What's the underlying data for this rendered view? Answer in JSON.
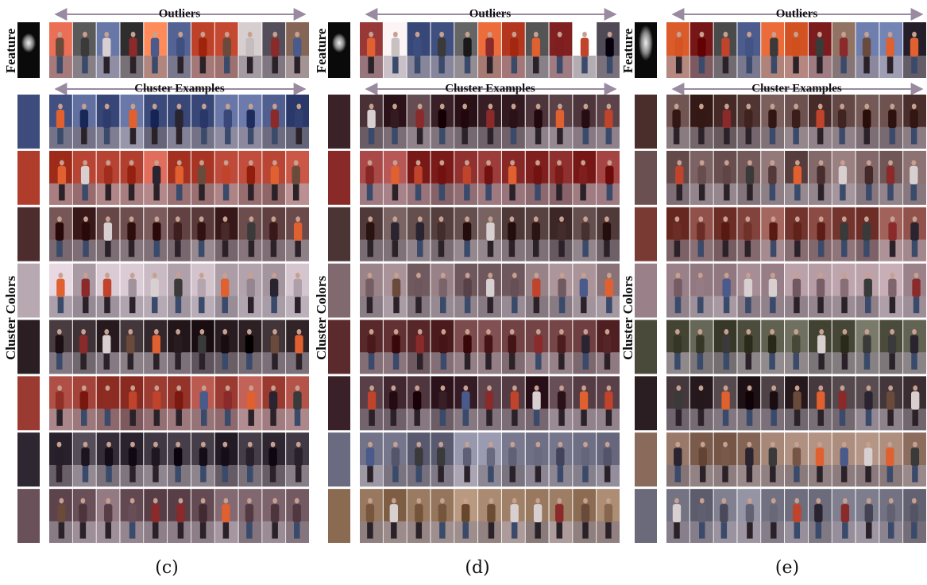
{
  "panels": [
    {
      "caption": "(c)",
      "feature_label": "Feature",
      "outliers_label": "Outliers",
      "cluster_examples_label": "Cluster Examples",
      "cluster_colors_label": "Cluster Colors",
      "cluster_colors": [
        "#3d4c7c",
        "#b03c2c",
        "#4c2c2c",
        "#b8a8b2",
        "#2a1e22",
        "#9a3a30",
        "#2e2630",
        "#6a5058"
      ]
    },
    {
      "caption": "(d)",
      "feature_label": "Feature",
      "outliers_label": "Outliers",
      "cluster_examples_label": "Cluster Examples",
      "cluster_colors_label": "Cluster Colors",
      "cluster_colors": [
        "#3a2228",
        "#8a2a28",
        "#4a3434",
        "#806a70",
        "#5a2a2c",
        "#3a2028",
        "#6a6a80",
        "#8a6a50"
      ]
    },
    {
      "caption": "(e)",
      "feature_label": "Feature",
      "outliers_label": "Outliers",
      "cluster_examples_label": "Cluster Examples",
      "cluster_colors_label": "Cluster Colors",
      "cluster_colors": [
        "#4a2e2c",
        "#6a5050",
        "#7a3a34",
        "#9a8088",
        "#4a4a3a",
        "#2a1e22",
        "#8a6a5a",
        "#6a6a7a"
      ]
    }
  ]
}
